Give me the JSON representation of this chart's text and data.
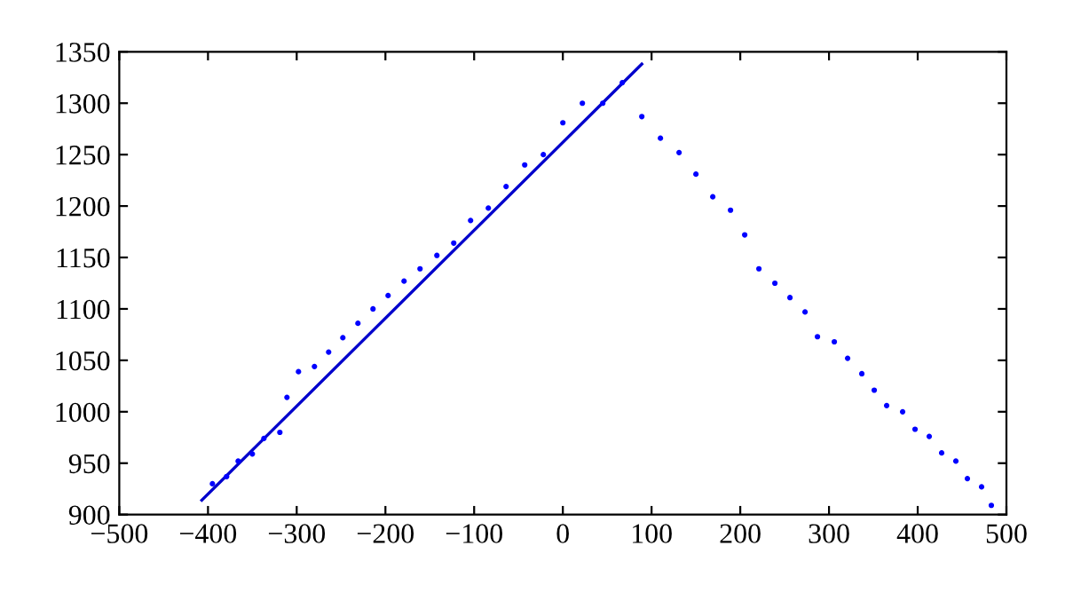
{
  "chart_data": {
    "type": "scatter",
    "xlim": [
      -500,
      500
    ],
    "ylim": [
      900,
      1350
    ],
    "xticks": [
      {
        "value": -500,
        "label": "−500"
      },
      {
        "value": -400,
        "label": "−400"
      },
      {
        "value": -300,
        "label": "−300"
      },
      {
        "value": -200,
        "label": "−200"
      },
      {
        "value": -100,
        "label": "−100"
      },
      0,
      100,
      200,
      300,
      400,
      500
    ],
    "yticks": [
      900,
      950,
      1000,
      1050,
      1100,
      1150,
      1200,
      1250,
      1300,
      1350
    ],
    "grid": false,
    "legend": false,
    "series": [
      {
        "marker": "circle",
        "color": "#0000ff",
        "x": [
          -395,
          -379,
          -366,
          -350,
          -337,
          -319,
          -311,
          -298,
          -280,
          -264,
          -248,
          -231,
          -214,
          -197,
          -179,
          -161,
          -142,
          -123,
          -104,
          -84,
          -64,
          -43,
          -22,
          0,
          22,
          45,
          67,
          89,
          110,
          131,
          150,
          169,
          189,
          205,
          221,
          239,
          256,
          273,
          287,
          306,
          321,
          337,
          351,
          365,
          383,
          397,
          413,
          427,
          443,
          456,
          472,
          483
        ],
        "values": [
          930,
          937,
          952,
          959,
          974,
          980,
          1014,
          1039,
          1044,
          1058,
          1072,
          1086,
          1100,
          1113,
          1127,
          1139,
          1152,
          1164,
          1186,
          1198,
          1219,
          1240,
          1250,
          1281,
          1300,
          1300,
          1320,
          1287,
          1266,
          1252,
          1231,
          1209,
          1196,
          1172,
          1139,
          1125,
          1111,
          1097,
          1073,
          1068,
          1052,
          1037,
          1021,
          1006,
          1000,
          983,
          976,
          960,
          952,
          935,
          927,
          909
        ]
      },
      {
        "type": "line",
        "line_style": "solid",
        "color": "#0000cc",
        "x": [
          -407,
          89
        ],
        "values": [
          914,
          1338
        ]
      }
    ]
  }
}
